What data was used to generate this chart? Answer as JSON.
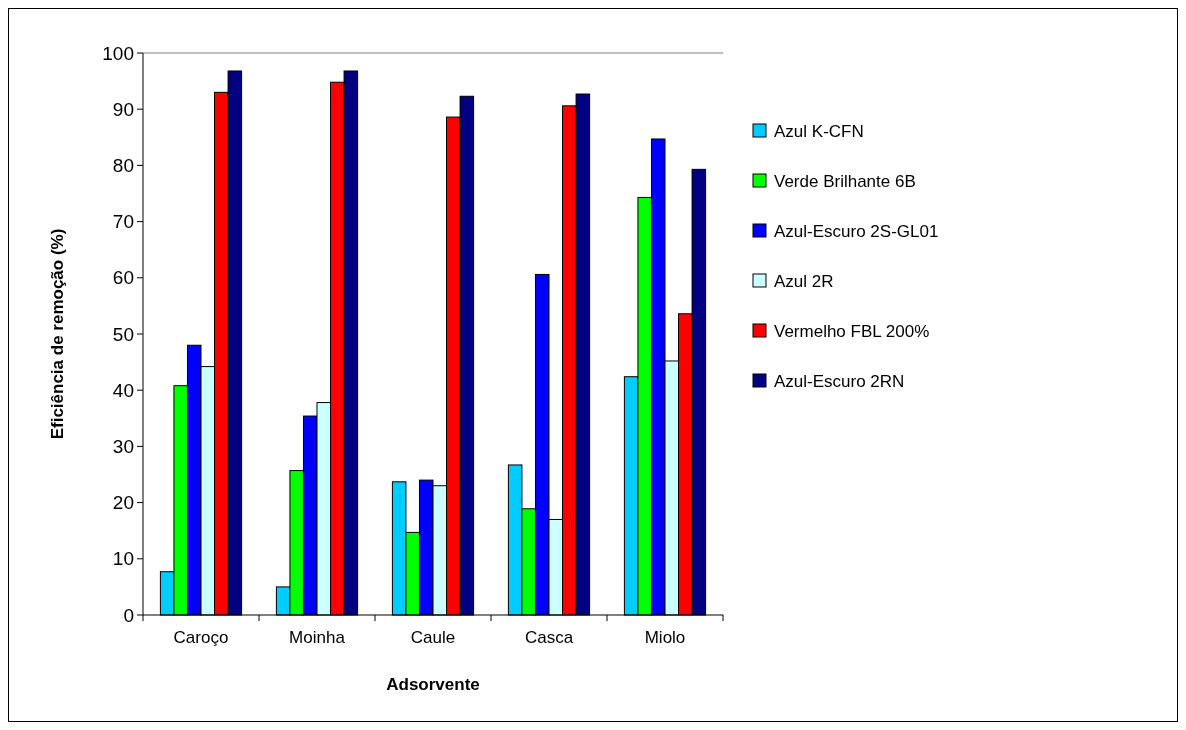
{
  "chart_data": {
    "type": "bar",
    "xlabel": "Adsorvente",
    "ylabel": "Eficiência de remoção (%)",
    "categories": [
      "Caroço",
      "Moinha",
      "Caule",
      "Casca",
      "Miolo"
    ],
    "series": [
      {
        "name": "Azul K-CFN",
        "color": "#00ccff",
        "values": [
          7.7,
          5,
          23.7,
          26.7,
          42.4
        ]
      },
      {
        "name": "Verde Brilhante 6B",
        "color": "#00ff00",
        "values": [
          40.8,
          25.7,
          14.7,
          18.9,
          74.3
        ]
      },
      {
        "name": "Azul-Escuro 2S-GL01",
        "color": "#0000ff",
        "values": [
          48,
          35.4,
          24,
          60.6,
          84.7
        ]
      },
      {
        "name": "Azul 2R",
        "color": "#ccffff",
        "values": [
          44.2,
          37.8,
          23,
          17,
          45.2
        ]
      },
      {
        "name": "Vermelho FBL 200%",
        "color": "#ff0000",
        "values": [
          93,
          94.8,
          88.6,
          90.6,
          53.6
        ]
      },
      {
        "name": "Azul-Escuro 2RN",
        "color": "#000080",
        "values": [
          96.8,
          96.8,
          92.3,
          92.7,
          79.3
        ]
      }
    ],
    "ylim": [
      0,
      100
    ],
    "yticks": [
      0,
      10,
      20,
      30,
      40,
      50,
      60,
      70,
      80,
      90,
      100
    ],
    "legend": "right"
  }
}
